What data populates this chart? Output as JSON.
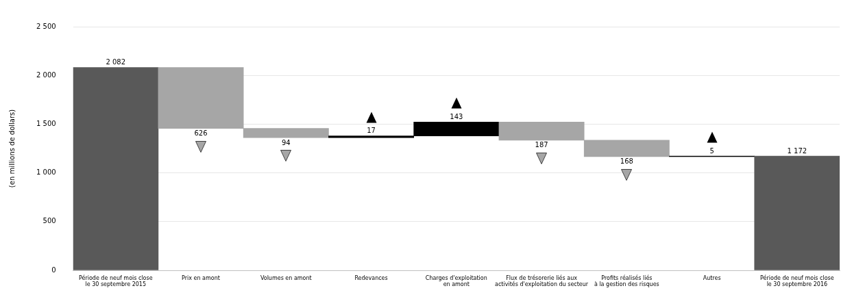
{
  "chart_data": {
    "type": "bar",
    "ylabel": "(en millions de dollars)",
    "categories": [
      "Période de neuf mois close\nle 30 septembre 2015",
      "Prix en amont",
      "Volumes en amont",
      "Redevances",
      "Charges d'exploitation\nen amont",
      "Flux de trésorerie liés aux\nactivités d'exploitation du secteur",
      "Profits réalisés liés\nà la gestion des risques",
      "Autres",
      "Période de neuf mois close\nle 30 septembre 2016"
    ],
    "values": [
      2082,
      -626,
      -94,
      17,
      143,
      -187,
      -168,
      5,
      1172
    ],
    "base": [
      0,
      2082,
      1456,
      1362,
      1379,
      1522,
      1335,
      1167,
      0
    ],
    "colors": [
      "#595959",
      "#a6a6a6",
      "#a6a6a6",
      "#000000",
      "#000000",
      "#a6a6a6",
      "#a6a6a6",
      "#000000",
      "#595959"
    ],
    "value_labels": [
      "2 082",
      "626",
      "94",
      "17",
      "143",
      "187",
      "168",
      "5",
      "1 172"
    ],
    "ylim": [
      0,
      2500
    ],
    "yticks": [
      0,
      {
        "value": 500,
        "label": "500"
      },
      {
        "value": 1000,
        "label": "1 000"
      },
      {
        "value": 1500,
        "label": "1 500"
      },
      {
        "value": 2000,
        "label": "2 000"
      },
      {
        "value": 2500,
        "label": "2 500"
      }
    ],
    "grid": "y"
  }
}
